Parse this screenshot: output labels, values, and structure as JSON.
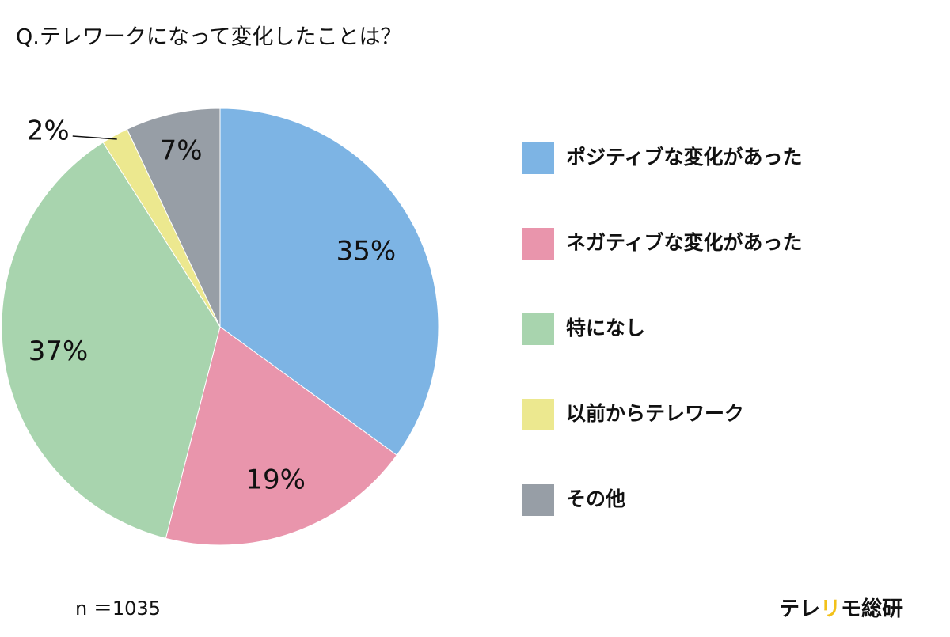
{
  "chart_data": {
    "type": "pie",
    "title": "Q.テレワークになって変化したことは？",
    "categories": [
      "ポジティブな変化があった",
      "ネガティブな変化があった",
      "特になし",
      "以前からテレワーク",
      "その他"
    ],
    "values": [
      35,
      19,
      37,
      2,
      7
    ],
    "value_labels": [
      "35%",
      "19%",
      "37%",
      "2%",
      "7%"
    ],
    "colors": [
      "#7db4e4",
      "#e995ac",
      "#a8d4ae",
      "#ece88f",
      "#979ea6"
    ],
    "note": "n ＝1035",
    "brand": [
      "テレ",
      "リ",
      "モ総研"
    ],
    "brand_colors": [
      "#111111",
      "#f2c11a",
      "#111111"
    ]
  }
}
